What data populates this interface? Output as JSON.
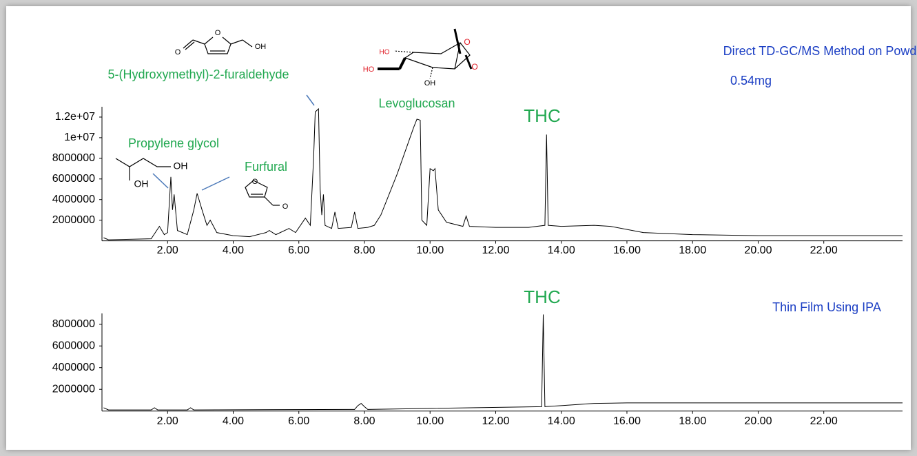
{
  "chart_data": [
    {
      "type": "line",
      "color": "#000000",
      "x": [
        0.05,
        0.2,
        1.5,
        1.75,
        1.9,
        2.0,
        2.1,
        2.15,
        2.2,
        2.3,
        2.6,
        2.8,
        2.9,
        3.05,
        3.2,
        3.3,
        3.5,
        4.0,
        4.5,
        5.0,
        5.1,
        5.3,
        5.7,
        5.9,
        6.2,
        6.35,
        6.45,
        6.5,
        6.6,
        6.65,
        6.7,
        6.75,
        6.8,
        7.0,
        7.1,
        7.2,
        7.6,
        7.7,
        7.8,
        8.1,
        8.3,
        8.5,
        9.0,
        9.5,
        9.6,
        9.7,
        9.75,
        9.9,
        10.0,
        10.1,
        10.15,
        10.25,
        10.5,
        11.0,
        11.1,
        11.2,
        12.0,
        13.0,
        13.5,
        13.55,
        13.6,
        14.0,
        15.0,
        15.5,
        16.5,
        18.0,
        20.0,
        24.4
      ],
      "values": [
        300000,
        100000,
        200000,
        1400000,
        600000,
        800000,
        6200000,
        3000000,
        4500000,
        1000000,
        600000,
        3000000,
        4600000,
        3000000,
        1500000,
        2000000,
        800000,
        500000,
        400000,
        800000,
        1000000,
        600000,
        1200000,
        800000,
        2200000,
        1500000,
        8000000,
        12500000,
        12800000,
        5000000,
        2500000,
        4500000,
        1500000,
        1200000,
        2800000,
        1200000,
        1300000,
        2800000,
        1200000,
        1300000,
        1500000,
        2500000,
        6500000,
        11000000,
        11800000,
        11700000,
        2000000,
        1500000,
        7000000,
        6800000,
        7000000,
        3000000,
        1800000,
        1400000,
        2400000,
        1400000,
        1300000,
        1300000,
        1500000,
        10300000,
        1500000,
        1400000,
        1500000,
        1400000,
        800000,
        600000,
        500000,
        500000
      ],
      "xlim": [
        0,
        24.4
      ],
      "ylim": [
        0,
        13000000
      ],
      "xticks": [
        {
          "value": 2,
          "label": "2.00"
        },
        {
          "value": 4,
          "label": "4.00"
        },
        {
          "value": 6,
          "label": "6.00"
        },
        {
          "value": 8,
          "label": "8.00"
        },
        {
          "value": 10,
          "label": "10.00"
        },
        {
          "value": 12,
          "label": "12.00"
        },
        {
          "value": 14,
          "label": "14.00"
        },
        {
          "value": 16,
          "label": "16.00"
        },
        {
          "value": 18,
          "label": "18.00"
        },
        {
          "value": 20,
          "label": "20.00"
        },
        {
          "value": 22,
          "label": "22.00"
        }
      ],
      "yticks": [
        2000000,
        4000000,
        6000000,
        8000000,
        {
          "value": 10000000,
          "label": "1e+07"
        },
        {
          "value": 12000000,
          "label": "1.2e+07"
        }
      ],
      "annotations": [
        {
          "text": "5-(Hydroxymethyl)-2-furaldehyde",
          "color": "#21a850"
        },
        {
          "text": "Levoglucosan",
          "color": "#21a850"
        },
        {
          "text": "THC",
          "color": "#21a850"
        },
        {
          "text": "Propylene glycol",
          "color": "#21a850"
        },
        {
          "text": "Furfural",
          "color": "#21a850"
        },
        {
          "text": "Direct TD-GC/MS Method on Powder",
          "color": "#1c3fc4"
        },
        {
          "text": "0.54mg",
          "color": "#1c3fc4"
        },
        {
          "text": "O",
          "color": "#000000"
        },
        {
          "text": "O",
          "color": "#000000"
        },
        {
          "text": "OH",
          "color": "#000000"
        },
        {
          "text": "HO",
          "color": "#e0202a"
        },
        {
          "text": "HO",
          "color": "#e0202a"
        },
        {
          "text": "OH",
          "color": "#000000"
        },
        {
          "text": "O",
          "color": "#e0202a"
        },
        {
          "text": "O",
          "color": "#e0202a"
        },
        {
          "text": "OH",
          "color": "#000000"
        },
        {
          "text": "OH",
          "color": "#000000"
        },
        {
          "text": "O",
          "color": "#000000"
        },
        {
          "text": "O",
          "color": "#000000"
        }
      ]
    },
    {
      "type": "line",
      "color": "#000000",
      "x": [
        0.05,
        0.2,
        1.5,
        1.6,
        1.7,
        2.6,
        2.7,
        2.8,
        7.7,
        7.8,
        7.9,
        8.0,
        8.1,
        13.4,
        13.45,
        13.5,
        14.0,
        15.0,
        16.0,
        24.4
      ],
      "values": [
        300000,
        100000,
        100000,
        300000,
        100000,
        100000,
        300000,
        100000,
        150000,
        500000,
        700000,
        400000,
        150000,
        400000,
        8900000,
        400000,
        500000,
        700000,
        750000,
        750000
      ],
      "xlim": [
        0,
        24.4
      ],
      "ylim": [
        0,
        9000000
      ],
      "xticks": [
        {
          "value": 2,
          "label": "2.00"
        },
        {
          "value": 4,
          "label": "4.00"
        },
        {
          "value": 6,
          "label": "6.00"
        },
        {
          "value": 8,
          "label": "8.00"
        },
        {
          "value": 10,
          "label": "10.00"
        },
        {
          "value": 12,
          "label": "12.00"
        },
        {
          "value": 14,
          "label": "14.00"
        },
        {
          "value": 16,
          "label": "16.00"
        },
        {
          "value": 18,
          "label": "18.00"
        },
        {
          "value": 20,
          "label": "20.00"
        },
        {
          "value": 22,
          "label": "22.00"
        }
      ],
      "yticks": [
        2000000,
        4000000,
        6000000,
        8000000
      ],
      "annotations": [
        {
          "text": "THC",
          "color": "#21a850"
        },
        {
          "text": "Thin Film Using IPA",
          "color": "#1c3fc4"
        }
      ]
    }
  ]
}
